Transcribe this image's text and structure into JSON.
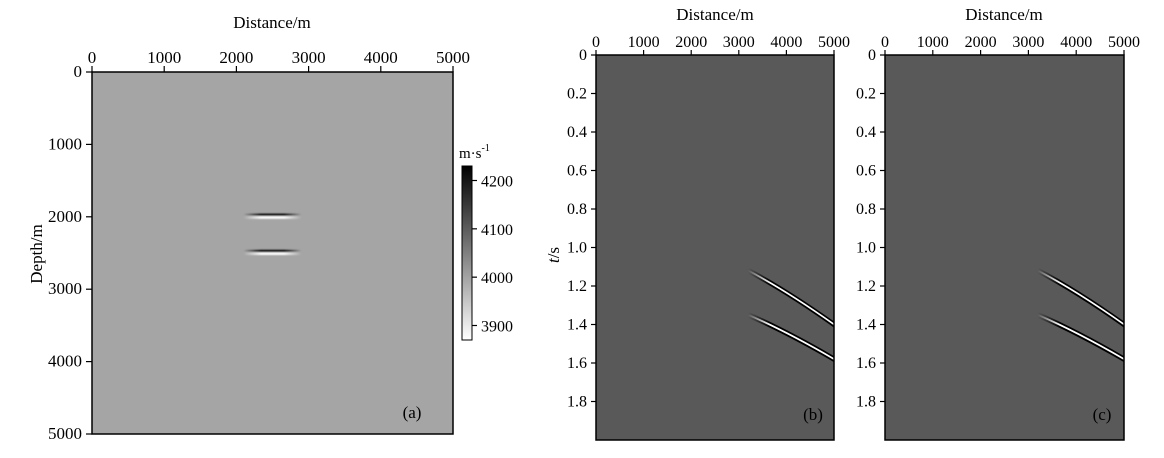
{
  "chart_data": [
    {
      "id": "a",
      "type": "heatmap",
      "panel_label": "(a)",
      "xlabel": "Distance/m",
      "ylabel": "Depth/m",
      "xticks": [
        0,
        1000,
        2000,
        3000,
        4000,
        5000
      ],
      "yticks": [
        0,
        1000,
        2000,
        3000,
        4000,
        5000
      ],
      "xlim": [
        0,
        5000
      ],
      "ylim": [
        0,
        5000
      ],
      "y_inverted": true,
      "background_value": 4050,
      "background_color": "#a5a5a5",
      "anomalies": [
        {
          "x_center": 2500,
          "depth": 2000,
          "half_width": 400,
          "contrast": "dark over light"
        },
        {
          "x_center": 2500,
          "depth": 2500,
          "half_width": 400,
          "contrast": "dark over light"
        }
      ],
      "colorbar": {
        "unit_main": "m·s",
        "unit_sup": "-1",
        "ticks": [
          4200,
          4100,
          4000,
          3900
        ],
        "range": [
          3870,
          4230
        ],
        "cmap": "gray, black=high, white=low"
      }
    },
    {
      "id": "b",
      "type": "heatmap",
      "panel_label": "(b)",
      "xlabel": "Distance/m",
      "ylabel_italic": "t",
      "ylabel_rest": "/s",
      "xticks": [
        0,
        1000,
        2000,
        3000,
        4000,
        5000
      ],
      "yticks": [
        "0",
        "0.2",
        "0.4",
        "0.6",
        "0.8",
        "1.0",
        "1.2",
        "1.4",
        "1.6",
        "1.8"
      ],
      "xlim": [
        0,
        5000
      ],
      "ylim": [
        0,
        2.0
      ],
      "y_inverted": true,
      "background_color": "#595959",
      "events": [
        {
          "start": [
            3200,
            1.12
          ],
          "end": [
            5000,
            1.4
          ]
        },
        {
          "start": [
            3200,
            1.35
          ],
          "end": [
            5000,
            1.58
          ]
        }
      ]
    },
    {
      "id": "c",
      "type": "heatmap",
      "panel_label": "(c)",
      "xlabel": "Distance/m",
      "ylabel_italic": "",
      "ylabel_rest": "",
      "xticks": [
        0,
        1000,
        2000,
        3000,
        4000,
        5000
      ],
      "yticks": [
        "0",
        "0.2",
        "0.4",
        "0.6",
        "0.8",
        "1.0",
        "1.2",
        "1.4",
        "1.6",
        "1.8"
      ],
      "xlim": [
        0,
        5000
      ],
      "ylim": [
        0,
        2.0
      ],
      "y_inverted": true,
      "background_color": "#595959",
      "events": [
        {
          "start": [
            3200,
            1.12
          ],
          "end": [
            5000,
            1.4
          ]
        },
        {
          "start": [
            3200,
            1.35
          ],
          "end": [
            5000,
            1.58
          ]
        }
      ]
    }
  ]
}
